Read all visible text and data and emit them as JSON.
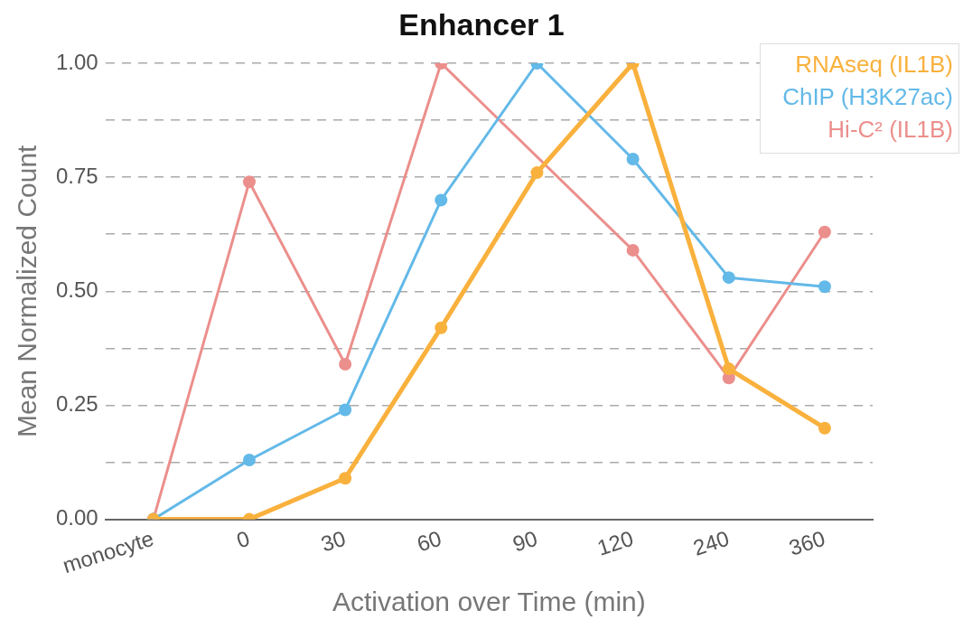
{
  "chart_data": {
    "type": "line",
    "title": "Enhancer 1",
    "xlabel": "Activation over Time (min)",
    "ylabel": "Mean Normalized Count",
    "categories": [
      "monocyte",
      "0",
      "30",
      "60",
      "90",
      "120",
      "240",
      "360"
    ],
    "series": [
      {
        "name": "RNAseq (IL1B)",
        "color": "#f9b13d",
        "values": [
          0,
          0,
          0.09,
          0.42,
          0.76,
          1.0,
          0.33,
          0.2
        ]
      },
      {
        "name": "ChIP (H3K27ac)",
        "color": "#63b9e8",
        "values": [
          0,
          0.13,
          0.24,
          0.7,
          1.0,
          0.79,
          0.53,
          0.51
        ]
      },
      {
        "name": "Hi-C² (IL1B)",
        "color": "#eb8f8c",
        "values": [
          0,
          0.74,
          0.34,
          1.0,
          null,
          0.59,
          0.31,
          0.63
        ]
      }
    ],
    "ylim": [
      0,
      1
    ],
    "yticks": [
      {
        "value": 0,
        "label": "0.00"
      },
      {
        "value": 0.125,
        "label": null
      },
      {
        "value": 0.25,
        "label": "0.25"
      },
      {
        "value": 0.375,
        "label": null
      },
      {
        "value": 0.5,
        "label": "0.50"
      },
      {
        "value": 0.625,
        "label": null
      },
      {
        "value": 0.75,
        "label": "0.75"
      },
      {
        "value": 0.875,
        "label": null
      },
      {
        "value": 1,
        "label": "1.00"
      }
    ],
    "grid": "y",
    "legend": "top right",
    "marker": "circle",
    "line_style": "solid"
  }
}
